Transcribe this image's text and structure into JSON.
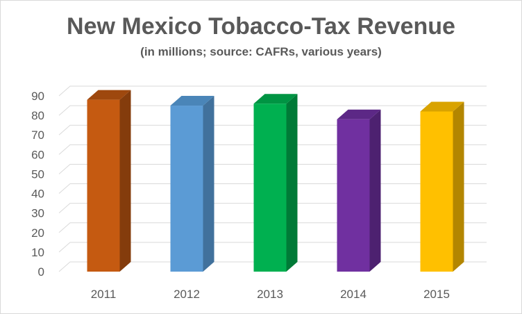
{
  "chart_data": {
    "type": "bar",
    "title": "New Mexico Tobacco-Tax Revenue",
    "subtitle": "(in millions; source: CAFRs, various years)",
    "categories": [
      "2011",
      "2012",
      "2013",
      "2014",
      "2015"
    ],
    "values": [
      88,
      85,
      86,
      78,
      82
    ],
    "ylim": [
      0,
      90
    ],
    "yticks": [
      0,
      10,
      20,
      30,
      40,
      50,
      60,
      70,
      80,
      90
    ],
    "xlabel": "",
    "ylabel": "",
    "grid": true,
    "style": "3d-column",
    "colors": [
      {
        "front": "#c55a11",
        "side": "#843c0c",
        "top": "#9e480e"
      },
      {
        "front": "#5b9bd5",
        "side": "#41719c",
        "top": "#4a85b8"
      },
      {
        "front": "#00b050",
        "side": "#007a37",
        "top": "#009443"
      },
      {
        "front": "#7030a0",
        "side": "#4d2170",
        "top": "#5c2886"
      },
      {
        "front": "#ffc000",
        "side": "#b38600",
        "top": "#d9a300"
      }
    ]
  }
}
